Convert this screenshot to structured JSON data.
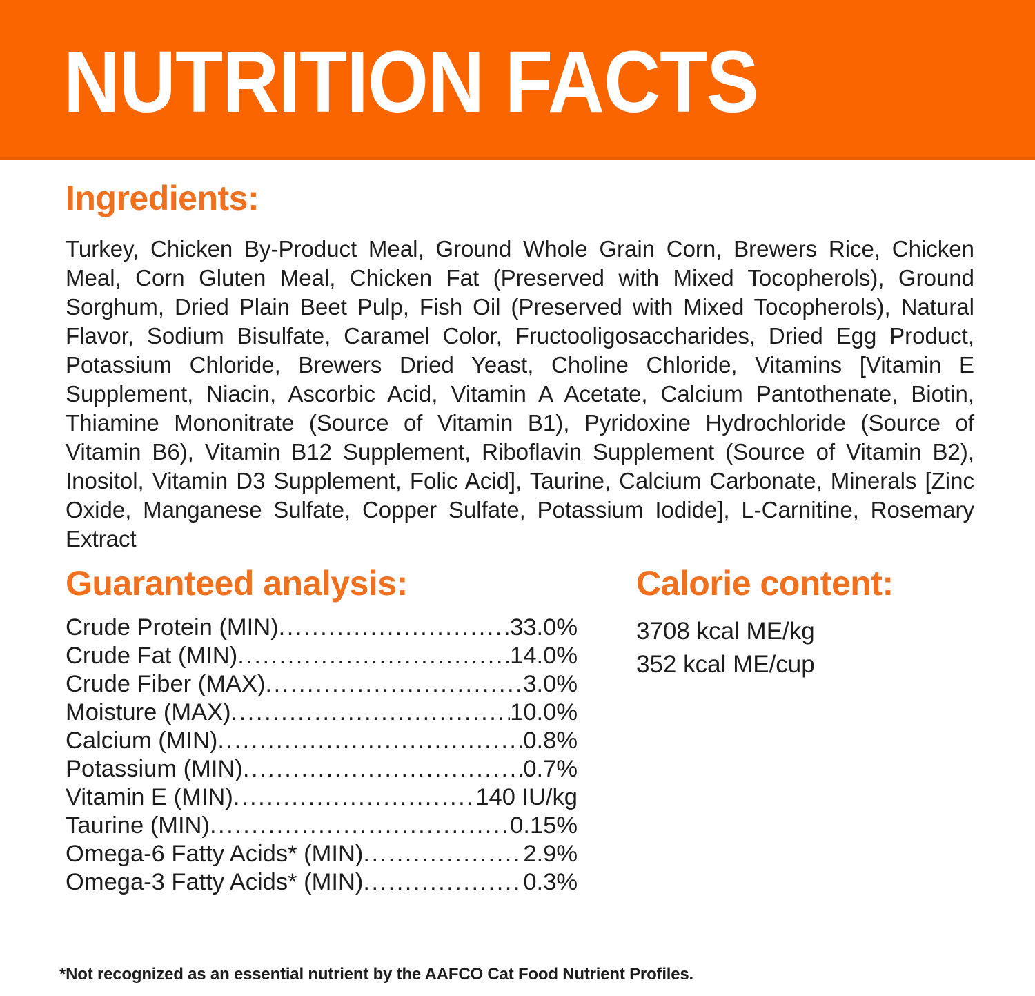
{
  "colors": {
    "banner_bg": "#FB6500",
    "banner_edge": "#EA5E00",
    "heading_orange": "#F1701E",
    "text": "#1D1D1D"
  },
  "header": {
    "title": "NUTRITION FACTS"
  },
  "ingredients": {
    "heading": "Ingredients:",
    "text": "Turkey, Chicken By-Product Meal, Ground Whole Grain Corn, Brewers Rice, Chicken Meal, Corn Gluten Meal, Chicken Fat (Preserved with Mixed Tocopherols), Ground Sorghum, Dried Plain Beet Pulp, Fish Oil (Preserved with Mixed Tocopherols), Natural Flavor, Sodium Bisulfate, Caramel Color, Fructooligosaccharides, Dried Egg Product, Potassium Chloride, Brewers Dried Yeast, Choline Chloride, Vitamins [Vitamin E Supplement, Niacin, Ascorbic Acid, Vitamin A Acetate, Calcium Pantothenate, Biotin, Thiamine Mononitrate (Source of Vitamin B1), Pyridoxine Hydrochloride (Source of Vitamin B6), Vitamin B12 Supplement, Riboflavin Supplement (Source of Vitamin B2), Inositol, Vitamin D3 Supplement, Folic Acid], Taurine, Calcium Carbonate, Minerals [Zinc Oxide, Manganese Sulfate, Copper Sulfate, Potassium Iodide], L-Carnitine, Rosemary Extract"
  },
  "guaranteed_analysis": {
    "heading": "Guaranteed analysis:",
    "rows": [
      {
        "label": "Crude Protein (MIN)",
        "value": "33.0%"
      },
      {
        "label": "Crude Fat (MIN)",
        "value": "14.0%"
      },
      {
        "label": "Crude Fiber (MAX)",
        "value": "3.0%"
      },
      {
        "label": "Moisture (MAX)",
        "value": "10.0%"
      },
      {
        "label": "Calcium (MIN)",
        "value": "0.8%"
      },
      {
        "label": "Potassium (MIN)",
        "value": "0.7%"
      },
      {
        "label": "Vitamin E (MIN)",
        "value": "140 IU/kg"
      },
      {
        "label": "Taurine (MIN)",
        "value": "0.15%"
      },
      {
        "label": "Omega-6 Fatty Acids* (MIN)",
        "value": "2.9%"
      },
      {
        "label": "Omega-3 Fatty Acids* (MIN)",
        "value": "0.3%"
      }
    ]
  },
  "calorie_content": {
    "heading": "Calorie content:",
    "lines": [
      "3708 kcal ME/kg",
      "352 kcal ME/cup"
    ]
  },
  "footnote": "*Not recognized as an essential nutrient by the AAFCO Cat Food Nutrient Profiles."
}
